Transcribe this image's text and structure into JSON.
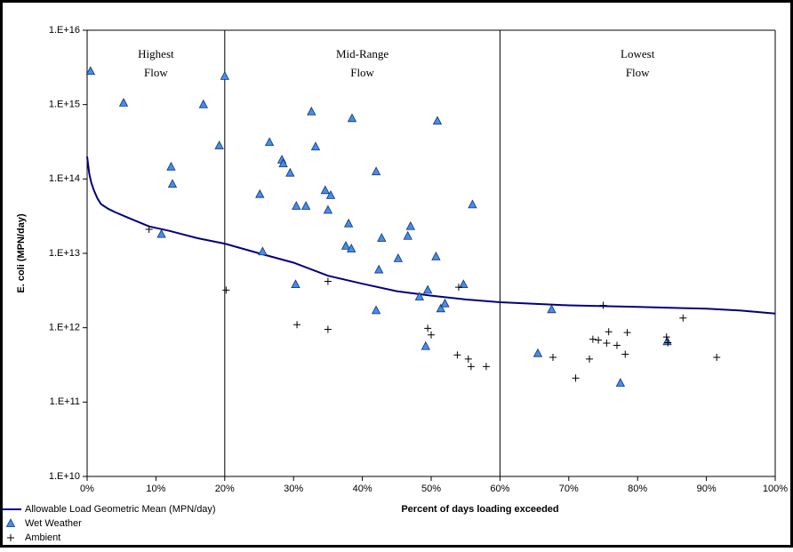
{
  "chart_data": {
    "type": "scatter",
    "y_label": "E. coli (MPN/day)",
    "x_label": "Percent of days loading exceeded",
    "log_y": true,
    "xlim": [
      0,
      100
    ],
    "xticks": [
      {
        "value": 0,
        "label": "0%"
      },
      {
        "value": 10,
        "label": "10%"
      },
      {
        "value": 20,
        "label": "20%"
      },
      {
        "value": 30,
        "label": "30%"
      },
      {
        "value": 40,
        "label": "40%"
      },
      {
        "value": 50,
        "label": "50%"
      },
      {
        "value": 60,
        "label": "60%"
      },
      {
        "value": 70,
        "label": "70%"
      },
      {
        "value": 80,
        "label": "80%"
      },
      {
        "value": 90,
        "label": "90%"
      },
      {
        "value": 100,
        "label": "100%"
      }
    ],
    "ylim": [
      10000000000.0,
      1e+16
    ],
    "yticks": [
      {
        "value": 10000000000.0,
        "label": "1.E+10"
      },
      {
        "value": 100000000000.0,
        "label": "1.E+11"
      },
      {
        "value": 1000000000000.0,
        "label": "1.E+12"
      },
      {
        "value": 10000000000000.0,
        "label": "1.E+13"
      },
      {
        "value": 100000000000000.0,
        "label": "1.E+14"
      },
      {
        "value": 1000000000000000.0,
        "label": "1.E+15"
      },
      {
        "value": 1e+16,
        "label": "1.E+16"
      }
    ],
    "dividers": [
      20,
      60
    ],
    "regions": [
      {
        "lines": [
          "Highest",
          "Flow"
        ]
      },
      {
        "lines": [
          "Mid-Range",
          "Flow"
        ]
      },
      {
        "lines": [
          "Lowest",
          "Flow"
        ]
      }
    ],
    "series": [
      {
        "name": "Allowable Load Geometric Mean (MPN/day)",
        "style": "line",
        "color": "#000080",
        "x": [
          0,
          0.3,
          0.6,
          1,
          1.5,
          2,
          3,
          4,
          6,
          9,
          12,
          16,
          20,
          25,
          30,
          35,
          40,
          45,
          50,
          55,
          60,
          70,
          80,
          90,
          95,
          100
        ],
        "values": [
          200000000000000.0,
          120000000000000.0,
          90000000000000.0,
          70000000000000.0,
          55000000000000.0,
          46000000000000.0,
          40000000000000.0,
          36000000000000.0,
          30000000000000.0,
          23000000000000.0,
          20000000000000.0,
          16000000000000.0,
          13500000000000.0,
          10000000000000.0,
          7500000000000.0,
          5000000000000.0,
          3900000000000.0,
          3100000000000.0,
          2700000000000.0,
          2400000000000.0,
          2200000000000.0,
          2000000000000.0,
          1900000000000.0,
          1800000000000.0,
          1700000000000.0,
          1550000000000.0
        ]
      },
      {
        "name": "Wet Weather",
        "style": "triangle",
        "color": "#3f8fef",
        "x": [
          0.5,
          5.3,
          16.9,
          20.0,
          19.2,
          12.2,
          12.4,
          10.8,
          25.5,
          25.1,
          26.5,
          28.3,
          28.5,
          29.5,
          30.4,
          31.8,
          32.6,
          33.2,
          34.6,
          35.4,
          35.0,
          30.3,
          37.6,
          38.0,
          38.4,
          38.5,
          42.0,
          42.4,
          42.8,
          42.0,
          45.2,
          46.6,
          47.0,
          48.3,
          49.2,
          49.5,
          50.7,
          50.9,
          51.4,
          52.0,
          54.7,
          56.0,
          65.5,
          67.5,
          77.5,
          84.3
        ],
        "values": [
          2800000000000000.0,
          1050000000000000.0,
          1000000000000000.0,
          2400000000000000.0,
          280000000000000.0,
          145000000000000.0,
          85000000000000.0,
          18000000000000.0,
          10500000000000.0,
          62000000000000.0,
          310000000000000.0,
          180000000000000.0,
          160000000000000.0,
          120000000000000.0,
          43000000000000.0,
          43000000000000.0,
          800000000000000.0,
          270000000000000.0,
          70000000000000.0,
          60000000000000.0,
          38000000000000.0,
          3800000000000.0,
          12500000000000.0,
          25000000000000.0,
          11500000000000.0,
          650000000000000.0,
          125000000000000.0,
          6000000000000.0,
          16000000000000.0,
          1700000000000.0,
          8500000000000.0,
          17000000000000.0,
          23000000000000.0,
          2600000000000.0,
          560000000000.0,
          3200000000000.0,
          9000000000000.0,
          600000000000000.0,
          1800000000000.0,
          2100000000000.0,
          3800000000000.0,
          45000000000000.0,
          450000000000.0,
          1750000000000.0,
          180000000000.0,
          650000000000.0
        ]
      },
      {
        "name": "Ambient",
        "style": "plus",
        "color": "#000000",
        "x": [
          9.0,
          20.2,
          30.5,
          35.0,
          35.0,
          49.5,
          50.0,
          53.8,
          54.0,
          55.4,
          55.8,
          58.0,
          67.7,
          71.0,
          73.0,
          73.5,
          74.3,
          75.0,
          75.5,
          75.8,
          77.0,
          78.2,
          78.5,
          84.2,
          84.4,
          86.6,
          91.5
        ],
        "values": [
          21000000000000.0,
          3200000000000.0,
          1100000000000.0,
          4200000000000.0,
          950000000000.0,
          980000000000.0,
          800000000000.0,
          430000000000.0,
          3500000000000.0,
          380000000000.0,
          300000000000.0,
          300000000000.0,
          400000000000.0,
          210000000000.0,
          380000000000.0,
          700000000000.0,
          680000000000.0,
          2000000000000.0,
          620000000000.0,
          880000000000.0,
          580000000000.0,
          440000000000.0,
          860000000000.0,
          750000000000.0,
          630000000000.0,
          1350000000000.0,
          400000000000.0
        ]
      }
    ]
  }
}
